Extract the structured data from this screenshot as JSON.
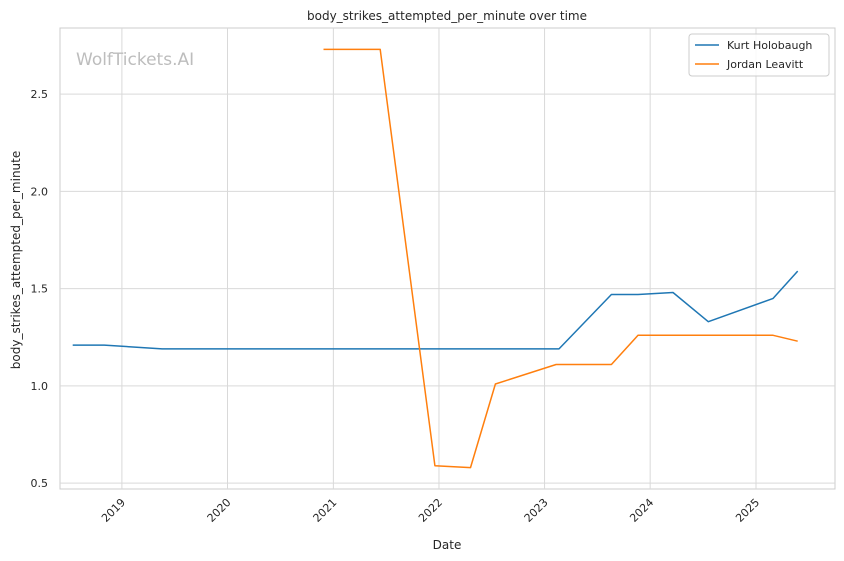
{
  "watermark": "WolfTickets.AI",
  "chart_data": {
    "type": "line",
    "title": "body_strikes_attempted_per_minute over time",
    "xlabel": "Date",
    "ylabel": "body_strikes_attempted_per_minute",
    "x_tick_labels": [
      "2019",
      "2020",
      "2021",
      "2022",
      "2023",
      "2024",
      "2025"
    ],
    "y_ticks": [
      0.5,
      1.0,
      1.5,
      2.0,
      2.5
    ],
    "y_tick_labels": [
      "0.5",
      "1.0",
      "1.5",
      "2.0",
      "2.5"
    ],
    "xlim": [
      "2018-06-01",
      "2025-10-01"
    ],
    "ylim": [
      0.47,
      2.84
    ],
    "grid": true,
    "legend_position": "top-right",
    "series": [
      {
        "name": "Kurt Holobaugh",
        "color": "#1f77b4",
        "points": [
          {
            "x": "2018-07-15",
            "y": 1.21
          },
          {
            "x": "2018-11-01",
            "y": 1.21
          },
          {
            "x": "2019-05-20",
            "y": 1.19
          },
          {
            "x": "2023-02-20",
            "y": 1.19
          },
          {
            "x": "2023-08-20",
            "y": 1.47
          },
          {
            "x": "2023-11-20",
            "y": 1.47
          },
          {
            "x": "2024-03-20",
            "y": 1.48
          },
          {
            "x": "2024-07-20",
            "y": 1.33
          },
          {
            "x": "2025-03-01",
            "y": 1.45
          },
          {
            "x": "2025-05-25",
            "y": 1.59
          }
        ]
      },
      {
        "name": "Jordan Leavitt",
        "color": "#ff7f0e",
        "points": [
          {
            "x": "2020-11-28",
            "y": 2.73
          },
          {
            "x": "2021-06-12",
            "y": 2.73
          },
          {
            "x": "2021-12-18",
            "y": 0.59
          },
          {
            "x": "2022-04-20",
            "y": 0.58
          },
          {
            "x": "2022-07-15",
            "y": 1.01
          },
          {
            "x": "2023-02-10",
            "y": 1.11
          },
          {
            "x": "2023-08-20",
            "y": 1.11
          },
          {
            "x": "2023-11-20",
            "y": 1.26
          },
          {
            "x": "2025-03-01",
            "y": 1.26
          },
          {
            "x": "2025-05-25",
            "y": 1.23
          }
        ]
      }
    ]
  }
}
